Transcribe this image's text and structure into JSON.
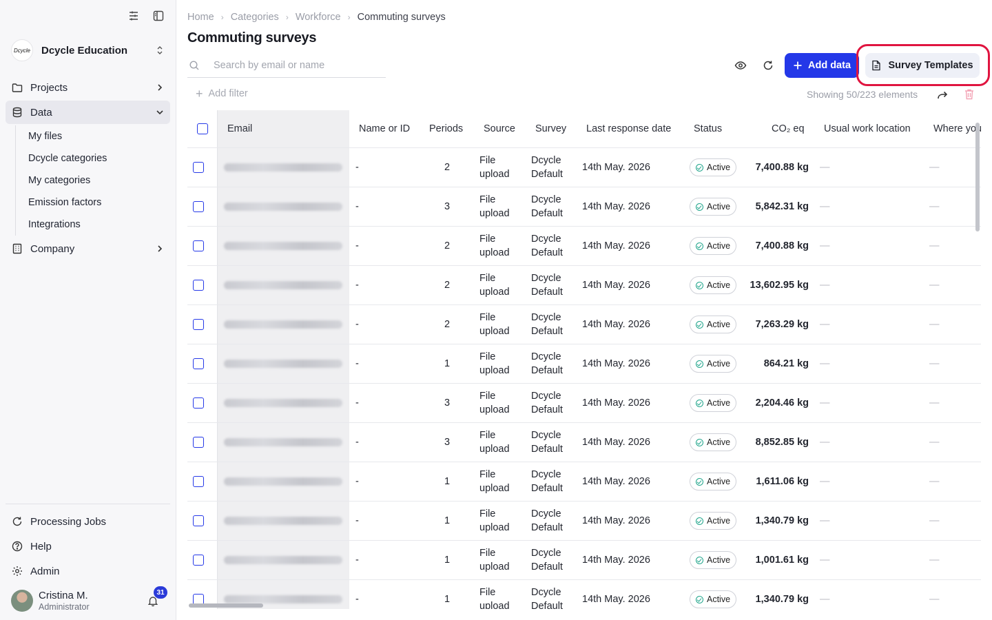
{
  "sidebar": {
    "org_logo_text": "Dcycle",
    "org_name": "Dcycle Education",
    "nav": [
      {
        "label": "Projects"
      },
      {
        "label": "Data"
      },
      {
        "label": "Company"
      }
    ],
    "data_subitems": [
      "My files",
      "Dcycle categories",
      "My categories",
      "Emission factors",
      "Integrations"
    ],
    "bottom": [
      {
        "label": "Processing Jobs"
      },
      {
        "label": "Help"
      },
      {
        "label": "Admin"
      }
    ],
    "user": {
      "name": "Cristina M.",
      "role": "Administrator",
      "notifications": "31"
    }
  },
  "breadcrumb": [
    "Home",
    "Categories",
    "Workforce",
    "Commuting surveys"
  ],
  "page_title": "Commuting surveys",
  "search": {
    "placeholder": "Search by email or name"
  },
  "toolbar": {
    "add_label": "Add data",
    "templates_label": "Survey Templates"
  },
  "filter": {
    "add_filter_label": "Add filter",
    "showing_text": "Showing 50/223 elements"
  },
  "table": {
    "headers": [
      "Email",
      "Name or ID",
      "Periods",
      "Source",
      "Survey",
      "Last response date",
      "Status",
      "CO₂ eq",
      "Usual work location",
      "Where you"
    ],
    "rows": [
      {
        "name": "-",
        "periods": "2",
        "source1": "File",
        "source2": "upload",
        "survey1": "Dcycle",
        "survey2": "Default",
        "date": "14th May. 2026",
        "status": "Active",
        "co2": "7,400.88 kg",
        "loc": "—",
        "where": "—"
      },
      {
        "name": "-",
        "periods": "3",
        "source1": "File",
        "source2": "upload",
        "survey1": "Dcycle",
        "survey2": "Default",
        "date": "14th May. 2026",
        "status": "Active",
        "co2": "5,842.31 kg",
        "loc": "—",
        "where": "—"
      },
      {
        "name": "-",
        "periods": "2",
        "source1": "File",
        "source2": "upload",
        "survey1": "Dcycle",
        "survey2": "Default",
        "date": "14th May. 2026",
        "status": "Active",
        "co2": "7,400.88 kg",
        "loc": "—",
        "where": "—"
      },
      {
        "name": "-",
        "periods": "2",
        "source1": "File",
        "source2": "upload",
        "survey1": "Dcycle",
        "survey2": "Default",
        "date": "14th May. 2026",
        "status": "Active",
        "co2": "13,602.95 kg",
        "loc": "—",
        "where": "—"
      },
      {
        "name": "-",
        "periods": "2",
        "source1": "File",
        "source2": "upload",
        "survey1": "Dcycle",
        "survey2": "Default",
        "date": "14th May. 2026",
        "status": "Active",
        "co2": "7,263.29 kg",
        "loc": "—",
        "where": "—"
      },
      {
        "name": "-",
        "periods": "1",
        "source1": "File",
        "source2": "upload",
        "survey1": "Dcycle",
        "survey2": "Default",
        "date": "14th May. 2026",
        "status": "Active",
        "co2": "864.21 kg",
        "loc": "—",
        "where": "—"
      },
      {
        "name": "-",
        "periods": "3",
        "source1": "File",
        "source2": "upload",
        "survey1": "Dcycle",
        "survey2": "Default",
        "date": "14th May. 2026",
        "status": "Active",
        "co2": "2,204.46 kg",
        "loc": "—",
        "where": "—"
      },
      {
        "name": "-",
        "periods": "3",
        "source1": "File",
        "source2": "upload",
        "survey1": "Dcycle",
        "survey2": "Default",
        "date": "14th May. 2026",
        "status": "Active",
        "co2": "8,852.85 kg",
        "loc": "—",
        "where": "—"
      },
      {
        "name": "-",
        "periods": "1",
        "source1": "File",
        "source2": "upload",
        "survey1": "Dcycle",
        "survey2": "Default",
        "date": "14th May. 2026",
        "status": "Active",
        "co2": "1,611.06 kg",
        "loc": "—",
        "where": "—"
      },
      {
        "name": "-",
        "periods": "1",
        "source1": "File",
        "source2": "upload",
        "survey1": "Dcycle",
        "survey2": "Default",
        "date": "14th May. 2026",
        "status": "Active",
        "co2": "1,340.79 kg",
        "loc": "—",
        "where": "—"
      },
      {
        "name": "-",
        "periods": "1",
        "source1": "File",
        "source2": "upload",
        "survey1": "Dcycle",
        "survey2": "Default",
        "date": "14th May. 2026",
        "status": "Active",
        "co2": "1,001.61 kg",
        "loc": "—",
        "where": "—"
      },
      {
        "name": "-",
        "periods": "1",
        "source1": "File",
        "source2": "upload",
        "survey1": "Dcycle",
        "survey2": "Default",
        "date": "14th May. 2026",
        "status": "Active",
        "co2": "1,340.79 kg",
        "loc": "—",
        "where": "—"
      }
    ]
  },
  "colors": {
    "accent": "#2438e8",
    "highlight": "#e0143f",
    "status": "#1ea48a"
  },
  "icons": [
    "sliders-icon",
    "sidebar-toggle-icon",
    "chevron-updown-icon",
    "folder-icon",
    "database-icon",
    "building-icon",
    "refresh-cog-icon",
    "help-icon",
    "gear-icon",
    "bell-icon",
    "search-icon",
    "eye-icon",
    "refresh-icon",
    "plus-icon",
    "document-icon",
    "export-arrow-icon",
    "trash-icon"
  ]
}
